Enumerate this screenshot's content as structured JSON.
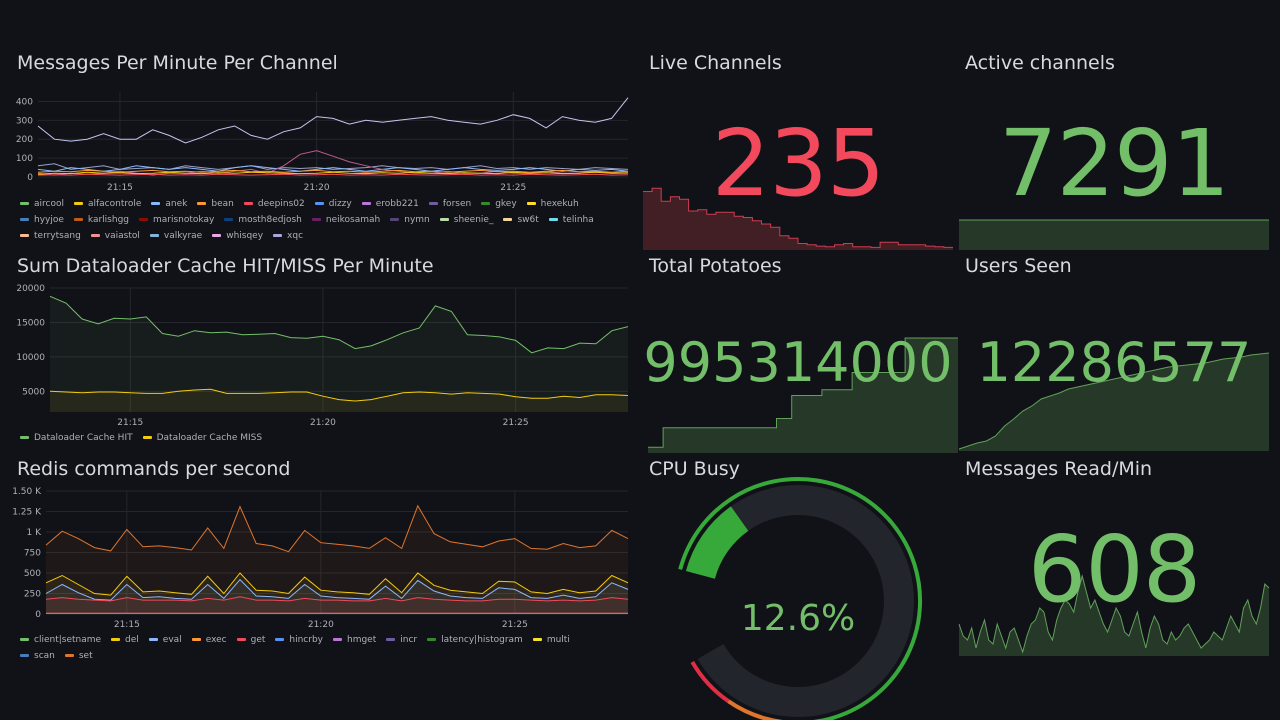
{
  "messages_panel": {
    "title": "Messages Per Minute Per Channel",
    "chart_data": {
      "type": "line",
      "ylim": [
        0,
        450
      ],
      "y_ticks": [
        "400",
        "300",
        "200",
        "100",
        "0"
      ],
      "y_tick_values": [
        400,
        300,
        200,
        100,
        0
      ],
      "x_ticks": [
        "21:15",
        "21:20",
        "21:25"
      ],
      "x_tick_values": [
        5,
        17,
        29
      ],
      "x_range": [
        0,
        36
      ],
      "series": [
        {
          "name": "xqc",
          "color": "#c2c6f0",
          "values": [
            270,
            200,
            190,
            200,
            230,
            200,
            200,
            250,
            220,
            180,
            210,
            250,
            270,
            220,
            200,
            240,
            260,
            320,
            310,
            280,
            300,
            290,
            300,
            310,
            320,
            300,
            290,
            280,
            300,
            330,
            310,
            260,
            320,
            300,
            290,
            310,
            420
          ]
        },
        {
          "name": "forsen",
          "color": "#9aa1c9",
          "values": [
            60,
            70,
            40,
            50,
            60,
            40,
            45,
            50,
            40,
            60,
            50,
            40,
            50,
            60,
            40,
            50,
            45,
            50,
            40,
            45,
            50,
            60,
            50,
            45,
            50,
            40,
            50,
            60,
            45,
            50,
            40,
            50,
            45,
            40,
            50,
            45,
            40
          ]
        },
        {
          "name": "anek",
          "color": "#8ab8ff",
          "values": [
            40,
            30,
            50,
            40,
            30,
            40,
            60,
            50,
            40,
            50,
            40,
            30,
            50,
            60,
            50,
            40,
            30,
            40,
            50,
            40,
            30,
            40,
            50,
            40,
            30,
            40,
            50,
            40,
            35,
            40,
            50,
            40,
            30,
            40,
            35,
            40,
            30
          ]
        },
        {
          "name": "neikosamah",
          "color": "#c05a90",
          "values": [
            20,
            10,
            20,
            15,
            20,
            30,
            20,
            10,
            20,
            20,
            30,
            20,
            30,
            40,
            20,
            60,
            120,
            140,
            110,
            80,
            60,
            40,
            30,
            20,
            20,
            30,
            20,
            20,
            30,
            20,
            20,
            30,
            20,
            20,
            30,
            20,
            20
          ]
        },
        {
          "name": "alfacontrole",
          "color": "#f2cc0c",
          "values": [
            15,
            20,
            18,
            25,
            20,
            22,
            18,
            20,
            25,
            20,
            18,
            22,
            20,
            25,
            22,
            20,
            18,
            20,
            25,
            20,
            18,
            22,
            20,
            25,
            20,
            18,
            22,
            20,
            18,
            25,
            20,
            22,
            18,
            20,
            25,
            20,
            22
          ]
        },
        {
          "name": "deepins02",
          "color": "#f2495c",
          "values": [
            10,
            12,
            10,
            15,
            12,
            10,
            12,
            15,
            10,
            12,
            10,
            15,
            12,
            10,
            12,
            15,
            10,
            12,
            15,
            10,
            12,
            10,
            15,
            12,
            10,
            12,
            15,
            10,
            12,
            10,
            15,
            12,
            10,
            12,
            15,
            10,
            12
          ]
        },
        {
          "name": "bean",
          "color": "#ff9830",
          "values": [
            25,
            30,
            28,
            35,
            30,
            25,
            30,
            35,
            28,
            30,
            25,
            30,
            35,
            28,
            30,
            25,
            30,
            35,
            28,
            30,
            25,
            30,
            35,
            28,
            30,
            25,
            30,
            35,
            28,
            30,
            25,
            30,
            35,
            28,
            30,
            25,
            30
          ]
        }
      ]
    },
    "legend": [
      "aircool",
      "alfacontrole",
      "anek",
      "bean",
      "deepins02",
      "dizzy",
      "erobb221",
      "forsen",
      "gkey",
      "hexekuh",
      "hyyjoe",
      "karlishgg",
      "marisnotokay",
      "mosth8edjosh",
      "neikosamah",
      "nymn",
      "sheenie_",
      "sw6t",
      "telinha",
      "terrytsang",
      "vaiastol",
      "valkyrae",
      "whisqey",
      "xqc"
    ],
    "legend_colors": [
      "#73bf69",
      "#f2cc0c",
      "#8ab8ff",
      "#ff9830",
      "#f2495c",
      "#5794f2",
      "#b877d9",
      "#705da0",
      "#37872d",
      "#fade2a",
      "#447ebc",
      "#c15c17",
      "#890f02",
      "#0a437c",
      "#6d1f62",
      "#584477",
      "#b7dbab",
      "#f4d598",
      "#70dbed",
      "#f9ba8f",
      "#f29191",
      "#82b5d8",
      "#e5a8e2",
      "#aea2e0"
    ]
  },
  "dataloader_panel": {
    "title": "Sum Dataloader Cache HIT/MISS Per Minute",
    "chart_data": {
      "type": "area",
      "ylim": [
        2000,
        20000
      ],
      "y_ticks": [
        "20000",
        "15000",
        "10000",
        "5000"
      ],
      "y_tick_values": [
        20000,
        15000,
        10000,
        5000
      ],
      "x_ticks": [
        "21:15",
        "21:20",
        "21:25"
      ],
      "x_tick_values": [
        5,
        17,
        29
      ],
      "x_range": [
        0,
        36
      ],
      "series": [
        {
          "name": "Dataloader Cache HIT",
          "color": "#73bf69",
          "values": [
            18800,
            17800,
            15500,
            14800,
            15600,
            15500,
            15800,
            13400,
            13000,
            13800,
            13500,
            13600,
            13200,
            13300,
            13400,
            12800,
            12700,
            13000,
            12500,
            11200,
            11600,
            12500,
            13500,
            14200,
            17400,
            16600,
            13200,
            13100,
            12900,
            12400,
            10600,
            11300,
            11200,
            12000,
            11900,
            13800,
            14400
          ]
        },
        {
          "name": "Dataloader Cache MISS",
          "color": "#f2cc0c",
          "values": [
            5000,
            4900,
            4800,
            4900,
            4900,
            4800,
            4700,
            4700,
            5000,
            5200,
            5300,
            4700,
            4700,
            4700,
            4800,
            4900,
            4900,
            4300,
            3800,
            3600,
            3800,
            4300,
            4800,
            4900,
            4800,
            4600,
            4800,
            4700,
            4600,
            4200,
            4000,
            4000,
            4300,
            4100,
            4500,
            4500,
            4400
          ]
        }
      ]
    },
    "legend": [
      "Dataloader Cache HIT",
      "Dataloader Cache MISS"
    ],
    "legend_colors": [
      "#73bf69",
      "#f2cc0c"
    ]
  },
  "redis_panel": {
    "title": "Redis commands per second",
    "chart_data": {
      "type": "area",
      "ylim": [
        0,
        1500
      ],
      "y_ticks": [
        "1.50 K",
        "1.25 K",
        "1 K",
        "750",
        "500",
        "250",
        "0"
      ],
      "y_tick_values": [
        1500,
        1250,
        1000,
        750,
        500,
        250,
        0
      ],
      "x_ticks": [
        "21:15",
        "21:20",
        "21:25"
      ],
      "x_tick_values": [
        5,
        17,
        29
      ],
      "x_range": [
        0,
        36
      ],
      "series": [
        {
          "name": "set",
          "color": "#e0752d",
          "values": [
            840,
            1010,
            920,
            810,
            770,
            1030,
            820,
            830,
            810,
            780,
            1050,
            800,
            1310,
            860,
            830,
            760,
            1020,
            870,
            850,
            830,
            800,
            930,
            800,
            1320,
            980,
            880,
            850,
            820,
            890,
            920,
            800,
            790,
            860,
            810,
            830,
            1020,
            920
          ]
        },
        {
          "name": "multi",
          "color": "#f2cc0c",
          "values": [
            380,
            470,
            360,
            250,
            230,
            460,
            270,
            280,
            260,
            240,
            460,
            250,
            500,
            290,
            280,
            250,
            450,
            290,
            270,
            260,
            240,
            430,
            260,
            500,
            350,
            290,
            270,
            250,
            400,
            390,
            270,
            250,
            300,
            260,
            280,
            470,
            380
          ]
        },
        {
          "name": "eval",
          "color": "#8ab8ff",
          "values": [
            250,
            360,
            260,
            180,
            170,
            360,
            200,
            210,
            190,
            180,
            360,
            190,
            420,
            220,
            210,
            190,
            360,
            220,
            200,
            190,
            180,
            340,
            190,
            410,
            280,
            220,
            200,
            190,
            320,
            300,
            200,
            190,
            230,
            190,
            210,
            380,
            300
          ]
        },
        {
          "name": "get",
          "color": "#f2495c",
          "values": [
            180,
            200,
            180,
            170,
            160,
            200,
            170,
            170,
            170,
            160,
            190,
            170,
            210,
            170,
            170,
            160,
            190,
            170,
            170,
            160,
            160,
            190,
            160,
            200,
            180,
            170,
            160,
            160,
            180,
            180,
            170,
            160,
            170,
            160,
            170,
            200,
            180
          ]
        },
        {
          "name": "hmget",
          "color": "#ff7383",
          "values": [
            10,
            10,
            10,
            10,
            10,
            10,
            10,
            10,
            10,
            10,
            10,
            10,
            10,
            10,
            10,
            10,
            10,
            10,
            10,
            10,
            10,
            10,
            10,
            10,
            10,
            10,
            10,
            10,
            10,
            10,
            10,
            10,
            10,
            10,
            10,
            10,
            10
          ]
        }
      ]
    },
    "legend": [
      "client|setname",
      "del",
      "eval",
      "exec",
      "get",
      "hincrby",
      "hmget",
      "incr",
      "latency|histogram",
      "multi",
      "scan",
      "set"
    ],
    "legend_colors": [
      "#73bf69",
      "#f2cc0c",
      "#8ab8ff",
      "#ff9830",
      "#f2495c",
      "#5794f2",
      "#b877d9",
      "#705da0",
      "#37872d",
      "#fade2a",
      "#447ebc",
      "#e0752d"
    ]
  },
  "live_channels": {
    "title": "Live Channels",
    "value": "235",
    "color": "#f2495c",
    "spark": [
      90,
      95,
      75,
      82,
      78,
      60,
      62,
      55,
      58,
      58,
      52,
      50,
      45,
      40,
      35,
      22,
      18,
      10,
      8,
      6,
      5,
      8,
      10,
      5,
      5,
      4,
      12,
      12,
      8,
      8,
      8,
      6,
      5,
      4,
      4
    ]
  },
  "active_channels": {
    "title": "Active channels",
    "value": "7291",
    "color": "#73bf69",
    "spark": [
      100,
      100,
      100,
      100,
      100,
      100,
      100,
      100,
      100,
      100,
      100,
      100,
      100,
      100,
      100,
      100,
      100,
      100,
      100,
      100,
      100,
      100,
      100,
      100,
      100,
      100,
      100,
      100,
      100,
      100,
      100,
      100,
      100,
      100,
      100
    ]
  },
  "total_potatoes": {
    "title": "Total Potatoes",
    "value": "995314000",
    "color": "#73bf69",
    "spark": [
      5,
      5,
      22,
      22,
      22,
      22,
      22,
      22,
      22,
      22,
      22,
      22,
      22,
      22,
      22,
      22,
      22,
      30,
      30,
      50,
      50,
      50,
      50,
      55,
      55,
      55,
      55,
      70,
      70,
      70,
      70,
      70,
      70,
      70,
      100,
      100,
      100,
      100,
      100,
      100,
      100,
      100
    ]
  },
  "users_seen": {
    "title": "Users Seen",
    "value": "12286577",
    "color": "#73bf69",
    "spark": [
      2,
      5,
      8,
      10,
      15,
      25,
      32,
      40,
      45,
      52,
      55,
      58,
      62,
      64,
      66,
      68,
      70,
      72,
      74,
      76,
      78,
      80,
      82,
      84,
      85,
      86,
      87,
      88,
      90,
      92,
      93,
      94,
      96,
      97,
      98
    ]
  },
  "cpu_busy": {
    "title": "CPU Busy",
    "value_text": "12.6%",
    "value": 12.6,
    "color": "#73bf69"
  },
  "messages_read": {
    "title": "Messages Read/Min",
    "value": "608",
    "color": "#73bf69",
    "spark": [
      40,
      25,
      20,
      35,
      10,
      30,
      45,
      20,
      15,
      40,
      25,
      10,
      30,
      35,
      20,
      5,
      25,
      40,
      45,
      60,
      55,
      30,
      20,
      45,
      60,
      70,
      65,
      55,
      80,
      100,
      80,
      60,
      70,
      55,
      40,
      30,
      45,
      60,
      50,
      30,
      25,
      40,
      55,
      30,
      10,
      35,
      50,
      40,
      20,
      15,
      30,
      20,
      25,
      35,
      40,
      30,
      20,
      10,
      15,
      20,
      30,
      25,
      20,
      35,
      50,
      40,
      30,
      60,
      70,
      50,
      40,
      60,
      90,
      85
    ]
  }
}
